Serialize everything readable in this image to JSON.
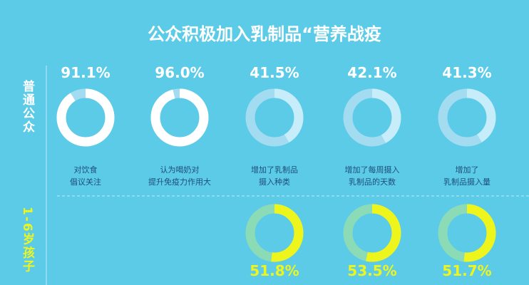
{
  "title": "公众积极加入乳制品“营养战疫",
  "chart_data": [
    {
      "type": "donut",
      "group": "普通公众",
      "categories": [
        "对饮食\n倡议关注",
        "认为喝奶对\n提升免疫力作用大",
        "增加了乳制品\n摄入种类",
        "增加了每周摄入\n乳制品的天数",
        "增加了\n乳制品摄入量"
      ],
      "values": [
        91.1,
        96.0,
        41.5,
        42.1,
        41.3
      ],
      "value_labels": [
        "91.1%",
        "96.0%",
        "41.5%",
        "42.1%",
        "41.3%"
      ],
      "colors": [
        "#ffffff",
        "#ffffff",
        "#c6edf9",
        "#c6edf9",
        "#c6edf9"
      ],
      "track_color": "#a3dcf1",
      "label_color": "#ffffff"
    },
    {
      "type": "donut",
      "group": "1-6岁孩子",
      "values": [
        51.8,
        53.5,
        51.7
      ],
      "value_labels": [
        "51.8%",
        "53.5%",
        "51.7%"
      ],
      "colors": [
        "#eef51c",
        "#eef51c",
        "#eef51c"
      ],
      "track_color": "#8bdcb6",
      "label_color": "#eef51c"
    }
  ]
}
